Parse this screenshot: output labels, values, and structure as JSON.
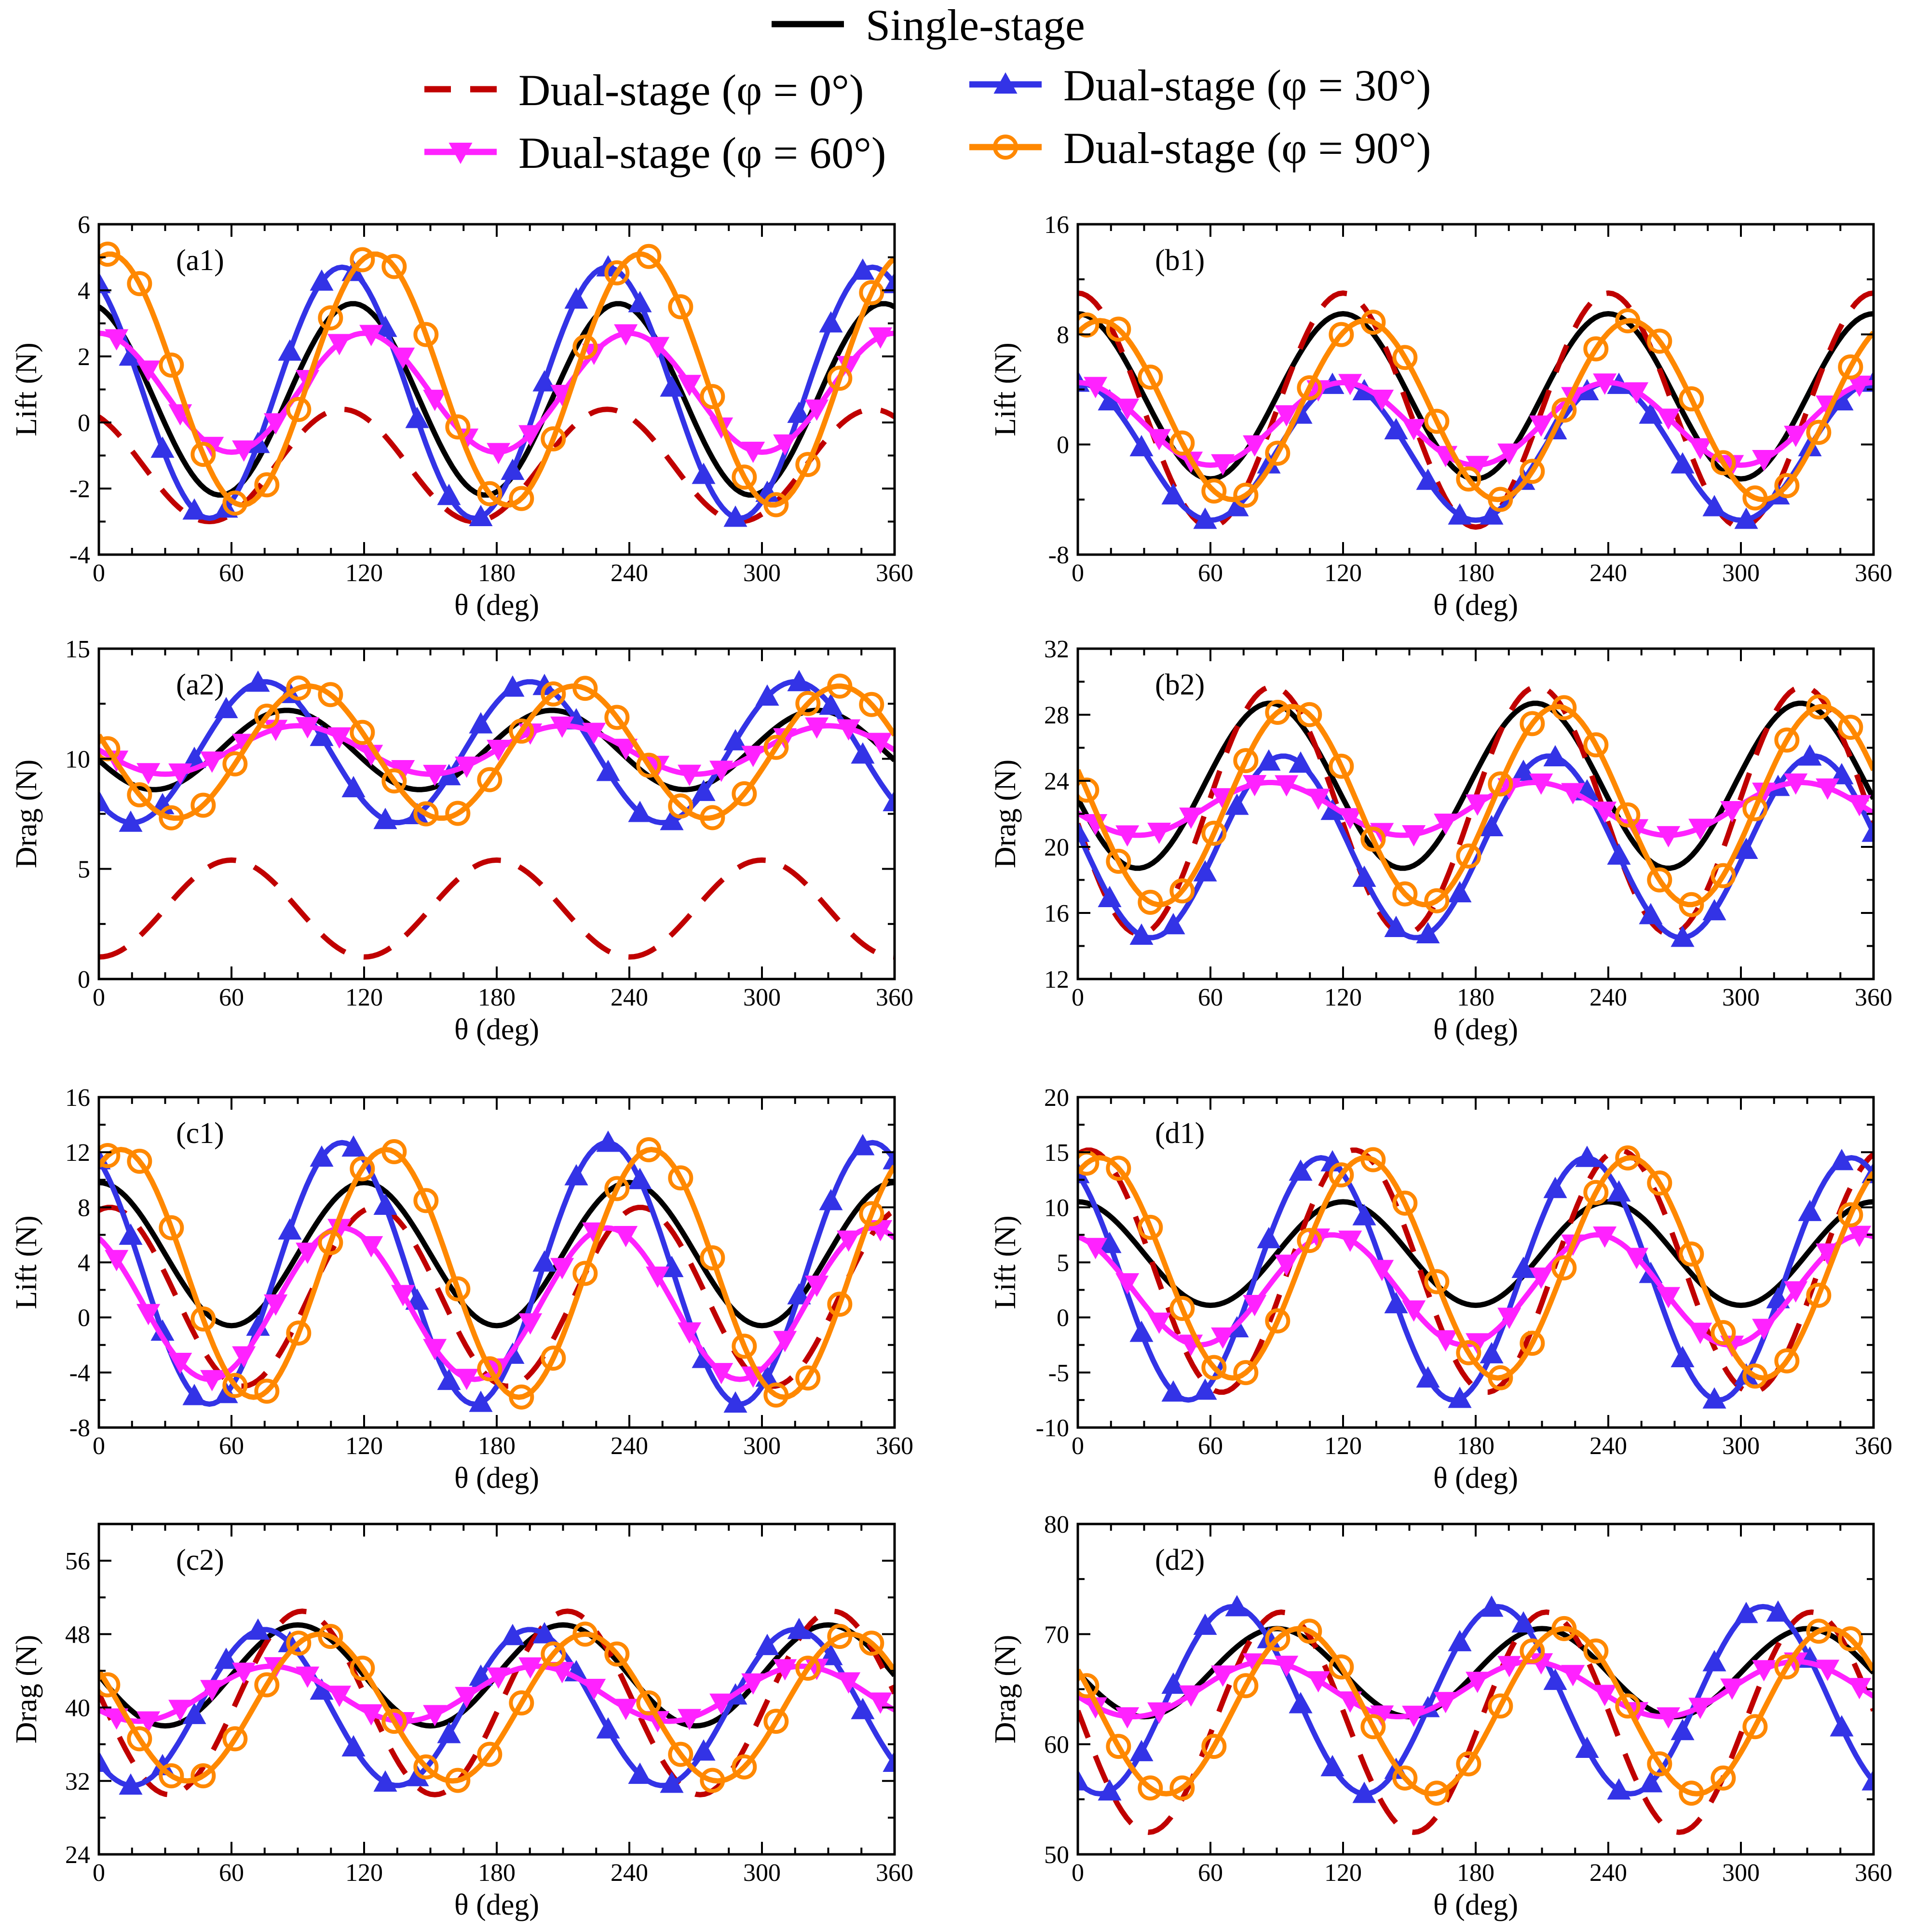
{
  "legend": [
    {
      "key": "single",
      "label": "Single-stage",
      "color": "#000000",
      "dash": "",
      "marker": "none"
    },
    {
      "key": "phi0",
      "label": "Dual-stage (φ = 0°)",
      "color": "#c00000",
      "dash": "60,40",
      "marker": "none"
    },
    {
      "key": "phi30",
      "label": "Dual-stage (φ = 30°)",
      "color": "#3333e6",
      "dash": "",
      "marker": "triangle-up"
    },
    {
      "key": "phi60",
      "label": "Dual-stage (φ = 60°)",
      "color": "#ff22ff",
      "dash": "",
      "marker": "triangle-down"
    },
    {
      "key": "phi90",
      "label": "Dual-stage (φ = 90°)",
      "color": "#ff8800",
      "dash": "",
      "marker": "circle"
    }
  ],
  "chart_data": [
    {
      "type": "line",
      "panel": "(a1)",
      "xlabel": "θ (deg)",
      "ylabel": "Lift (N)",
      "xlim": [
        0,
        360
      ],
      "ylim": [
        -4,
        6
      ],
      "xticks": [
        0,
        60,
        120,
        180,
        240,
        300,
        360
      ],
      "yticks": [
        -4,
        -2,
        0,
        2,
        4,
        6
      ],
      "series": [
        {
          "key": "single",
          "mean": 0.7,
          "amp": 2.9,
          "peak": 115
        },
        {
          "key": "phi0",
          "mean": -1.3,
          "amp": 1.7,
          "peak": 110
        },
        {
          "key": "phi30",
          "mean": 0.9,
          "amp": 3.8,
          "peak": 110
        },
        {
          "key": "phi60",
          "mean": 0.9,
          "amp": 1.8,
          "peak": 120
        },
        {
          "key": "phi90",
          "mean": 1.3,
          "amp": 3.8,
          "peak": 125
        }
      ]
    },
    {
      "type": "line",
      "panel": "(b1)",
      "xlabel": "θ (deg)",
      "ylabel": "Lift (N)",
      "xlim": [
        0,
        360
      ],
      "ylim": [
        -8,
        16
      ],
      "xticks": [
        0,
        60,
        120,
        180,
        240,
        300,
        360
      ],
      "yticks": [
        -8,
        0,
        8,
        16
      ],
      "series": [
        {
          "key": "single",
          "mean": 3.5,
          "amp": 6,
          "peak": 0
        },
        {
          "key": "phi0",
          "mean": 2.5,
          "amp": 8.5,
          "peak": 0
        },
        {
          "key": "phi30",
          "mean": -0.5,
          "amp": 5,
          "peak": 0
        },
        {
          "key": "phi60",
          "mean": 1.5,
          "amp": 3,
          "peak": 0
        },
        {
          "key": "phi90",
          "mean": 2.5,
          "amp": 6.5,
          "peak": 10
        }
      ]
    },
    {
      "type": "line",
      "panel": "(a2)",
      "xlabel": "θ (deg)",
      "ylabel": "Drag (N)",
      "xlim": [
        0,
        360
      ],
      "ylim": [
        0,
        15
      ],
      "xticks": [
        0,
        60,
        120,
        180,
        240,
        300,
        360
      ],
      "yticks": [
        0,
        5,
        10,
        15
      ],
      "series": [
        {
          "key": "single",
          "mean": 10.4,
          "amp": 1.8,
          "peak": 85
        },
        {
          "key": "phi0",
          "mean": 3.2,
          "amp": 2.2,
          "peak": 60
        },
        {
          "key": "phi30",
          "mean": 10.3,
          "amp": 3.2,
          "peak": 75
        },
        {
          "key": "phi60",
          "mean": 10.4,
          "amp": 1.1,
          "peak": 90
        },
        {
          "key": "phi90",
          "mean": 10.3,
          "amp": 3.0,
          "peak": 95
        }
      ]
    },
    {
      "type": "line",
      "panel": "(b2)",
      "xlabel": "θ (deg)",
      "ylabel": "Drag (N)",
      "xlim": [
        0,
        360
      ],
      "ylim": [
        12,
        32
      ],
      "xticks": [
        0,
        60,
        120,
        180,
        240,
        300,
        360
      ],
      "yticks": [
        12,
        16,
        20,
        24,
        28,
        32
      ],
      "series": [
        {
          "key": "single",
          "mean": 23.7,
          "amp": 5,
          "peak": 87
        },
        {
          "key": "phi0",
          "mean": 22.2,
          "amp": 7.5,
          "peak": 88
        },
        {
          "key": "phi30",
          "mean": 20,
          "amp": 5.5,
          "peak": 93
        },
        {
          "key": "phi60",
          "mean": 22.3,
          "amp": 1.6,
          "peak": 87
        },
        {
          "key": "phi90",
          "mean": 22.5,
          "amp": 6,
          "peak": 97
        }
      ]
    },
    {
      "type": "line",
      "panel": "(c1)",
      "xlabel": "θ (deg)",
      "ylabel": "Lift (N)",
      "xlim": [
        0,
        360
      ],
      "ylim": [
        -8,
        16
      ],
      "xticks": [
        0,
        60,
        120,
        180,
        240,
        300,
        360
      ],
      "yticks": [
        -8,
        -4,
        0,
        4,
        8,
        12,
        16
      ],
      "series": [
        {
          "key": "single",
          "mean": 4.6,
          "amp": 5.2,
          "peak": 0
        },
        {
          "key": "phi0",
          "mean": 1.5,
          "amp": 6.5,
          "peak": 5
        },
        {
          "key": "phi30",
          "mean": 3.2,
          "amp": 9.5,
          "peak": 350
        },
        {
          "key": "phi60",
          "mean": 1.0,
          "amp": 5.5,
          "peak": 110
        },
        {
          "key": "phi90",
          "mean": 3.2,
          "amp": 9,
          "peak": 10
        }
      ]
    },
    {
      "type": "line",
      "panel": "(d1)",
      "xlabel": "θ (deg)",
      "ylabel": "Lift (N)",
      "xlim": [
        0,
        360
      ],
      "ylim": [
        -10,
        20
      ],
      "xticks": [
        0,
        60,
        120,
        180,
        240,
        300,
        360
      ],
      "yticks": [
        -10,
        -5,
        0,
        5,
        10,
        15,
        20
      ],
      "series": [
        {
          "key": "single",
          "mean": 5.8,
          "amp": 4.7,
          "peak": 0
        },
        {
          "key": "phi0",
          "mean": 4.2,
          "amp": 11,
          "peak": 5
        },
        {
          "key": "phi30",
          "mean": 3.5,
          "amp": 11,
          "peak": 350
        },
        {
          "key": "phi60",
          "mean": 2.5,
          "amp": 5,
          "peak": 115
        },
        {
          "key": "phi90",
          "mean": 4.5,
          "amp": 10,
          "peak": 10
        }
      ]
    },
    {
      "type": "line",
      "panel": "(c2)",
      "xlabel": "θ (deg)",
      "ylabel": "Drag (N)",
      "xlim": [
        0,
        360
      ],
      "ylim": [
        24,
        60
      ],
      "xticks": [
        0,
        60,
        120,
        180,
        240,
        300,
        360
      ],
      "yticks": [
        24,
        32,
        40,
        48,
        56
      ],
      "series": [
        {
          "key": "single",
          "mean": 43.5,
          "amp": 5.5,
          "peak": 90
        },
        {
          "key": "phi0",
          "mean": 40.5,
          "amp": 10,
          "peak": 92
        },
        {
          "key": "phi30",
          "mean": 40,
          "amp": 8.5,
          "peak": 75
        },
        {
          "key": "phi60",
          "mean": 41.5,
          "amp": 3,
          "peak": 78
        },
        {
          "key": "phi90",
          "mean": 40,
          "amp": 8,
          "peak": 100
        }
      ]
    },
    {
      "type": "line",
      "panel": "(d2)",
      "xlabel": "θ (deg)",
      "ylabel": "Drag (N)",
      "xlim": [
        0,
        360
      ],
      "ylim": [
        50,
        80
      ],
      "xticks": [
        0,
        60,
        120,
        180,
        240,
        300,
        360
      ],
      "yticks": [
        50,
        60,
        70,
        80
      ],
      "series": [
        {
          "key": "single",
          "mean": 66.5,
          "amp": 4,
          "peak": 90
        },
        {
          "key": "phi0",
          "mean": 62,
          "amp": 10,
          "peak": 92
        },
        {
          "key": "phi30",
          "mean": 64,
          "amp": 8.5,
          "peak": 70
        },
        {
          "key": "phi60",
          "mean": 65,
          "amp": 2.5,
          "peak": 85
        },
        {
          "key": "phi90",
          "mean": 63,
          "amp": 7.5,
          "peak": 100
        }
      ]
    }
  ]
}
